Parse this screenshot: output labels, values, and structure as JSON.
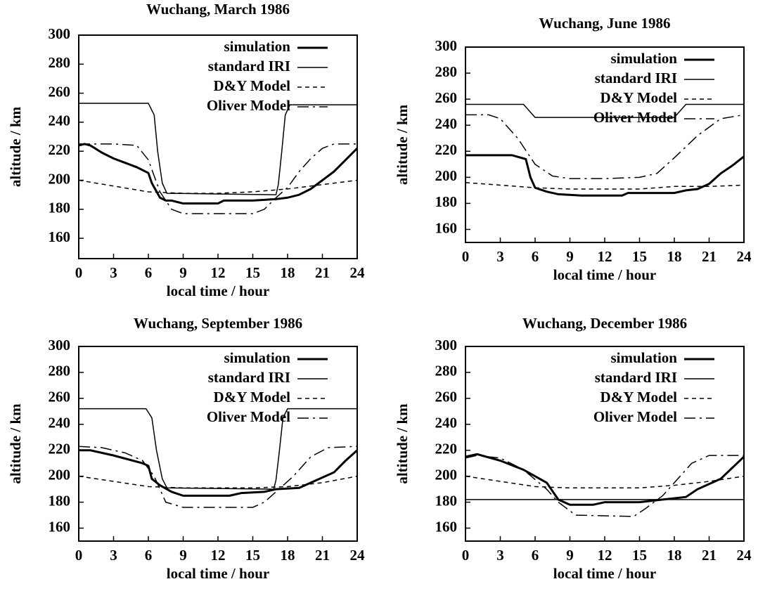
{
  "chart_data": [
    {
      "type": "line",
      "title": "Wuchang, March 1986",
      "xlabel": "local time / hour",
      "ylabel": "altitude / km",
      "xlim": [
        0,
        24
      ],
      "xticks": [
        0,
        3,
        6,
        9,
        12,
        15,
        18,
        21,
        24
      ],
      "ylim": [
        146,
        300
      ],
      "yticks": [
        160,
        180,
        200,
        220,
        240,
        260,
        280,
        300
      ],
      "series": [
        {
          "name": "simulation",
          "color": "#000000",
          "line_style": "solid",
          "line_width": 3,
          "x": [
            0,
            0.5,
            1,
            2,
            3,
            4,
            5,
            6,
            6.3,
            7,
            7.5,
            8,
            9,
            10,
            12,
            12.5,
            13,
            15,
            17,
            18,
            19,
            20,
            21,
            22,
            23,
            24
          ],
          "values": [
            224,
            225,
            224,
            219,
            215,
            212,
            209,
            205,
            198,
            188,
            186,
            186,
            184,
            184,
            184,
            186,
            186,
            186,
            187,
            188,
            190,
            194,
            200,
            206,
            214,
            222
          ]
        },
        {
          "name": "standard IRI",
          "color": "#000000",
          "line_style": "solid",
          "line_width": 1.5,
          "x": [
            0,
            6,
            6.5,
            6.8,
            7.2,
            7.6,
            17,
            17.2,
            17.5,
            17.8,
            18.2,
            24
          ],
          "values": [
            253,
            253,
            245,
            220,
            198,
            191,
            190,
            197,
            220,
            245,
            252,
            252
          ]
        },
        {
          "name": "D&Y Model",
          "color": "#000000",
          "line_style": "dashed",
          "line_width": 1.5,
          "x": [
            0,
            3,
            6,
            9,
            12,
            15,
            18,
            21,
            24
          ],
          "values": [
            200,
            196,
            192,
            191,
            191,
            192,
            194,
            197,
            200
          ]
        },
        {
          "name": "Oliver Model",
          "color": "#000000",
          "line_style": "dashdot",
          "line_width": 1.5,
          "x": [
            0,
            3,
            5,
            6,
            7,
            8,
            9,
            12,
            15,
            16,
            17,
            18,
            19,
            20,
            21,
            22,
            24
          ],
          "values": [
            225,
            225,
            224,
            214,
            192,
            180,
            177,
            177,
            177,
            180,
            188,
            195,
            206,
            215,
            222,
            225,
            225
          ]
        }
      ]
    },
    {
      "type": "line",
      "title": "Wuchang, June 1986",
      "xlabel": "local time / hour",
      "ylabel": "altitude / km",
      "xlim": [
        0,
        24
      ],
      "xticks": [
        0,
        3,
        6,
        9,
        12,
        15,
        18,
        21,
        24
      ],
      "ylim": [
        150,
        300
      ],
      "yticks": [
        160,
        180,
        200,
        220,
        240,
        260,
        280,
        300
      ],
      "series": [
        {
          "name": "simulation",
          "color": "#000000",
          "line_style": "solid",
          "line_width": 3,
          "x": [
            0,
            4,
            5.2,
            5.6,
            6,
            7,
            8,
            10,
            13.5,
            14,
            15,
            18,
            19,
            20,
            21,
            22,
            23,
            24
          ],
          "values": [
            217,
            217,
            214,
            200,
            192,
            189,
            187,
            186,
            186,
            188,
            188,
            188,
            190,
            191,
            195,
            203,
            209,
            216
          ]
        },
        {
          "name": "standard IRI",
          "color": "#000000",
          "line_style": "solid",
          "line_width": 1.5,
          "x": [
            0,
            5,
            6,
            18,
            19,
            24
          ],
          "values": [
            256,
            256,
            246,
            246,
            256,
            256
          ]
        },
        {
          "name": "D&Y Model",
          "color": "#000000",
          "line_style": "dashed",
          "line_width": 1.5,
          "x": [
            0,
            3,
            6,
            9,
            12,
            15,
            18,
            21,
            24
          ],
          "values": [
            196,
            194,
            192,
            191,
            191,
            191,
            193,
            193,
            194
          ]
        },
        {
          "name": "Oliver Model",
          "color": "#000000",
          "line_style": "dashdot",
          "line_width": 1.5,
          "x": [
            0,
            2,
            3,
            4.5,
            6,
            7.5,
            9,
            12,
            15,
            16.5,
            18,
            20,
            22,
            24
          ],
          "values": [
            248,
            248,
            245,
            230,
            210,
            201,
            199,
            199,
            200,
            203,
            215,
            232,
            245,
            248
          ]
        }
      ]
    },
    {
      "type": "line",
      "title": "Wuchang, September 1986",
      "xlabel": "local time / hour",
      "ylabel": "altitude / km",
      "xlim": [
        0,
        24
      ],
      "xticks": [
        0,
        3,
        6,
        9,
        12,
        15,
        18,
        21,
        24
      ],
      "ylim": [
        150,
        300
      ],
      "yticks": [
        160,
        180,
        200,
        220,
        240,
        260,
        280,
        300
      ],
      "series": [
        {
          "name": "simulation",
          "color": "#000000",
          "line_style": "solid",
          "line_width": 3,
          "x": [
            0,
            1,
            3,
            5.5,
            6,
            6.3,
            7,
            8,
            9,
            13,
            14,
            16,
            17,
            19,
            20,
            22,
            23,
            24
          ],
          "values": [
            220,
            220,
            216,
            210,
            208,
            198,
            193,
            188,
            185,
            185,
            187,
            188,
            190,
            191,
            195,
            203,
            212,
            220
          ]
        },
        {
          "name": "standard IRI",
          "color": "#000000",
          "line_style": "solid",
          "line_width": 1.5,
          "x": [
            0,
            5.8,
            6.3,
            6.7,
            7.2,
            7.6,
            16.8,
            17,
            17.3,
            17.6,
            18,
            24
          ],
          "values": [
            252,
            252,
            245,
            220,
            198,
            191,
            190,
            197,
            220,
            245,
            252,
            252
          ]
        },
        {
          "name": "D&Y Model",
          "color": "#000000",
          "line_style": "dashed",
          "line_width": 1.5,
          "x": [
            0,
            3,
            6,
            9,
            12,
            15,
            18,
            21,
            24
          ],
          "values": [
            200,
            196,
            192,
            191,
            191,
            191,
            192,
            195,
            200
          ]
        },
        {
          "name": "Oliver Model",
          "color": "#000000",
          "line_style": "dashdot",
          "line_width": 1.5,
          "x": [
            0,
            2,
            4,
            5.5,
            6.5,
            7.5,
            9,
            15,
            16,
            17,
            18.5,
            20,
            21.5,
            24
          ],
          "values": [
            223,
            222,
            218,
            212,
            200,
            180,
            176,
            176,
            180,
            188,
            200,
            215,
            222,
            223
          ]
        }
      ]
    },
    {
      "type": "line",
      "title": "Wuchang, December 1986",
      "xlabel": "local time / hour",
      "ylabel": "altitude / km",
      "xlim": [
        0,
        24
      ],
      "xticks": [
        0,
        3,
        6,
        9,
        12,
        15,
        18,
        21,
        24
      ],
      "ylim": [
        150,
        300
      ],
      "yticks": [
        160,
        180,
        200,
        220,
        240,
        260,
        280,
        300
      ],
      "series": [
        {
          "name": "simulation",
          "color": "#000000",
          "line_style": "solid",
          "line_width": 3,
          "x": [
            0,
            1,
            3,
            5,
            7,
            8,
            9,
            11,
            12,
            15,
            17,
            19,
            20,
            22,
            24
          ],
          "values": [
            215,
            217,
            212,
            205,
            195,
            182,
            178,
            178,
            180,
            180,
            182,
            184,
            190,
            198,
            215
          ]
        },
        {
          "name": "standard IRI",
          "color": "#000000",
          "line_style": "solid",
          "line_width": 1.5,
          "x": [
            0,
            24
          ],
          "values": [
            182,
            182
          ]
        },
        {
          "name": "D&Y Model",
          "color": "#000000",
          "line_style": "dashed",
          "line_width": 1.5,
          "x": [
            0,
            3,
            6,
            9,
            12,
            15,
            18,
            21,
            24
          ],
          "values": [
            200,
            196,
            192,
            191,
            191,
            191,
            193,
            196,
            200
          ]
        },
        {
          "name": "Oliver Model",
          "color": "#000000",
          "line_style": "dashdot",
          "line_width": 1.5,
          "x": [
            0,
            1,
            3,
            5,
            7,
            8,
            9.5,
            14.5,
            15.5,
            17,
            18.5,
            19.5,
            21,
            24
          ],
          "values": [
            214,
            216,
            214,
            205,
            190,
            180,
            170,
            169,
            175,
            185,
            200,
            210,
            216,
            216
          ]
        }
      ]
    }
  ]
}
